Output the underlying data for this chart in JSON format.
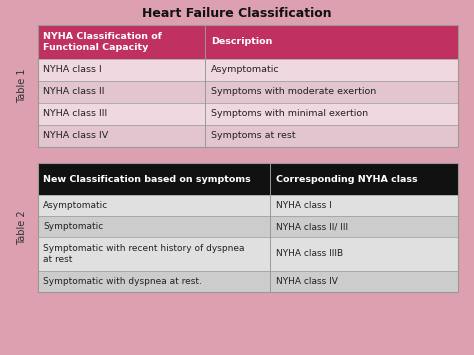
{
  "title": "Heart Failure Classification",
  "background_color": "#dda0b0",
  "table1": {
    "label": "Table 1",
    "header": [
      "NYHA Classification of\nFunctional Capacity",
      "Description"
    ],
    "header_bg": "#c03060",
    "header_text_color": "#ffffff",
    "rows": [
      [
        "NYHA class I",
        "Asymptomatic"
      ],
      [
        "NYHA class II",
        "Symptoms with moderate exertion"
      ],
      [
        "NYHA class III",
        "Symptoms with minimal exertion"
      ],
      [
        "NYHA class IV",
        "Symptoms at rest"
      ]
    ],
    "row_colors": [
      "#f0d8e0",
      "#e2c5cf",
      "#f0d8e0",
      "#e2c5cf"
    ],
    "text_color": "#222222"
  },
  "table2": {
    "label": "Table 2",
    "header": [
      "New Classification based on symptoms",
      "Corresponding NYHA class"
    ],
    "header_bg": "#111111",
    "header_text_color": "#ffffff",
    "rows": [
      [
        "Asymptomatic",
        "NYHA class I"
      ],
      [
        "Symptomatic",
        "NYHA class II/ III"
      ],
      [
        "Symptomatic with recent history of dyspnea\nat rest",
        "NYHA class IIIB"
      ],
      [
        "Symptomatic with dyspnea at rest.",
        "NYHA class IV"
      ]
    ],
    "row_colors": [
      "#e0e0e0",
      "#cccccc",
      "#e0e0e0",
      "#cccccc"
    ],
    "text_color": "#222222"
  }
}
